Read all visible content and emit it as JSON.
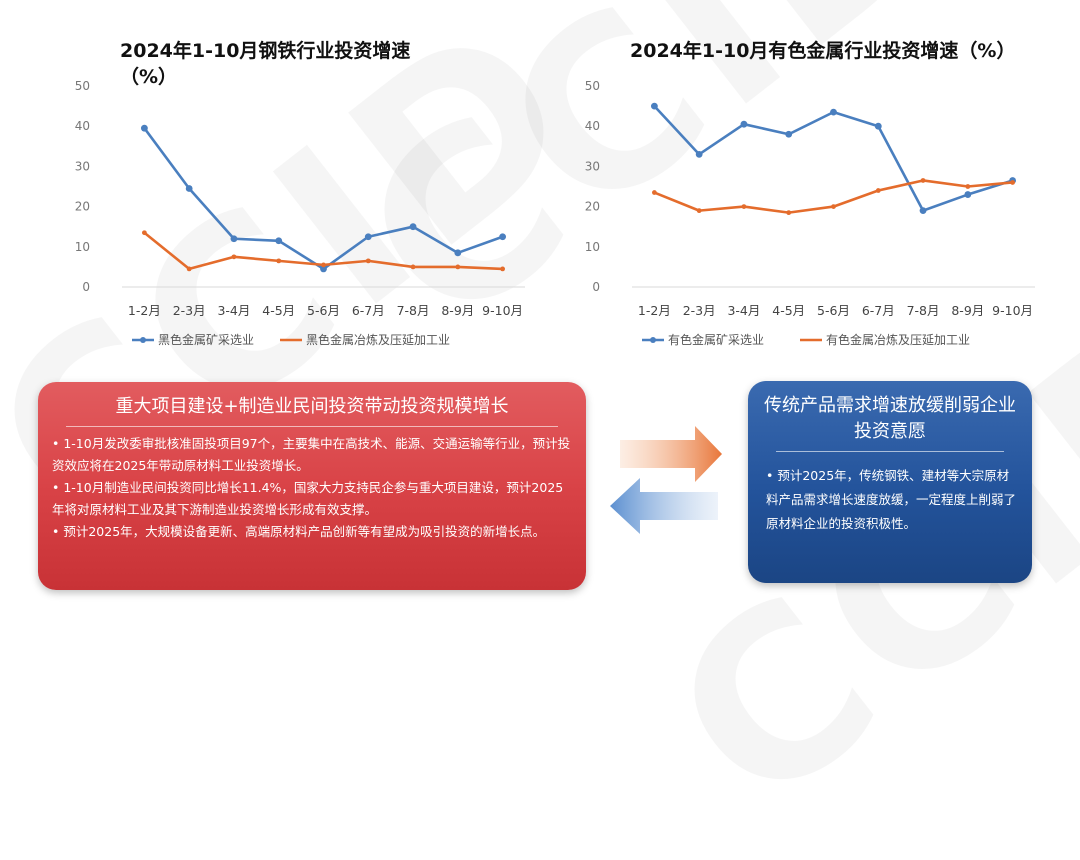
{
  "watermark": "CCID",
  "chart_data": [
    {
      "type": "line",
      "title": "2024年1-10月钢铁行业投资增速（%）",
      "categories": [
        "1-2月",
        "2-3月",
        "3-4月",
        "4-5月",
        "5-6月",
        "6-7月",
        "7-8月",
        "8-9月",
        "9-10月"
      ],
      "yticks": [
        "50",
        "40",
        "30",
        "20",
        "10",
        "0"
      ],
      "ylim": [
        0,
        50
      ],
      "series": [
        {
          "name": "黑色金属矿采选业",
          "color": "#4a7fbf",
          "values": [
            39.5,
            24.5,
            12,
            11.5,
            4.5,
            12.5,
            15,
            8.5,
            12.5
          ]
        },
        {
          "name": "黑色金属冶炼及压延加工业",
          "color": "#e46c2c",
          "values": [
            13.5,
            4.5,
            7.5,
            6.5,
            5.5,
            6.5,
            5,
            5,
            4.5
          ]
        }
      ],
      "legend": "bottom",
      "grid": false
    },
    {
      "type": "line",
      "title": "2024年1-10月有色金属行业投资增速（%）",
      "categories": [
        "1-2月",
        "2-3月",
        "3-4月",
        "4-5月",
        "5-6月",
        "6-7月",
        "7-8月",
        "8-9月",
        "9-10月"
      ],
      "yticks": [
        "50",
        "40",
        "30",
        "20",
        "10",
        "0"
      ],
      "ylim": [
        0,
        50
      ],
      "series": [
        {
          "name": "有色金属矿采选业",
          "color": "#4a7fbf",
          "values": [
            45,
            33,
            40.5,
            38,
            43.5,
            40,
            19,
            23,
            26.5
          ]
        },
        {
          "name": "有色金属冶炼及压延加工业",
          "color": "#e46c2c",
          "values": [
            23.5,
            19,
            20,
            18.5,
            20,
            24,
            26.5,
            25,
            26
          ]
        }
      ],
      "legend": "bottom",
      "grid": false
    }
  ],
  "red_box": {
    "title": "重大项目建设+制造业民间投资带动投资规模增长",
    "bullets": [
      "• 1-10月发改委审批核准固投项目97个，主要集中在高技术、能源、交通运输等行业，预计投资效应将在2025年带动原材料工业投资增长。",
      "• 1-10月制造业民间投资同比增长11.4%，国家大力支持民企参与重大项目建设，预计2025年将对原材料工业及其下游制造业投资增长形成有效支撑。",
      "• 预计2025年，大规模设备更新、高端原材料产品创新等有望成为吸引投资的新增长点。"
    ],
    "color": "#d94347"
  },
  "blue_box": {
    "title": "传统产品需求增速放缓削弱企业投资意愿",
    "bullets": [
      "• 预计2025年，传统钢铁、建材等大宗原材料产品需求增长速度放缓，一定程度上削弱了原材料企业的投资积极性。"
    ],
    "color": "#23539b"
  },
  "arrows": {
    "right_color": "#e8763a",
    "left_color": "#5b8fd0"
  }
}
